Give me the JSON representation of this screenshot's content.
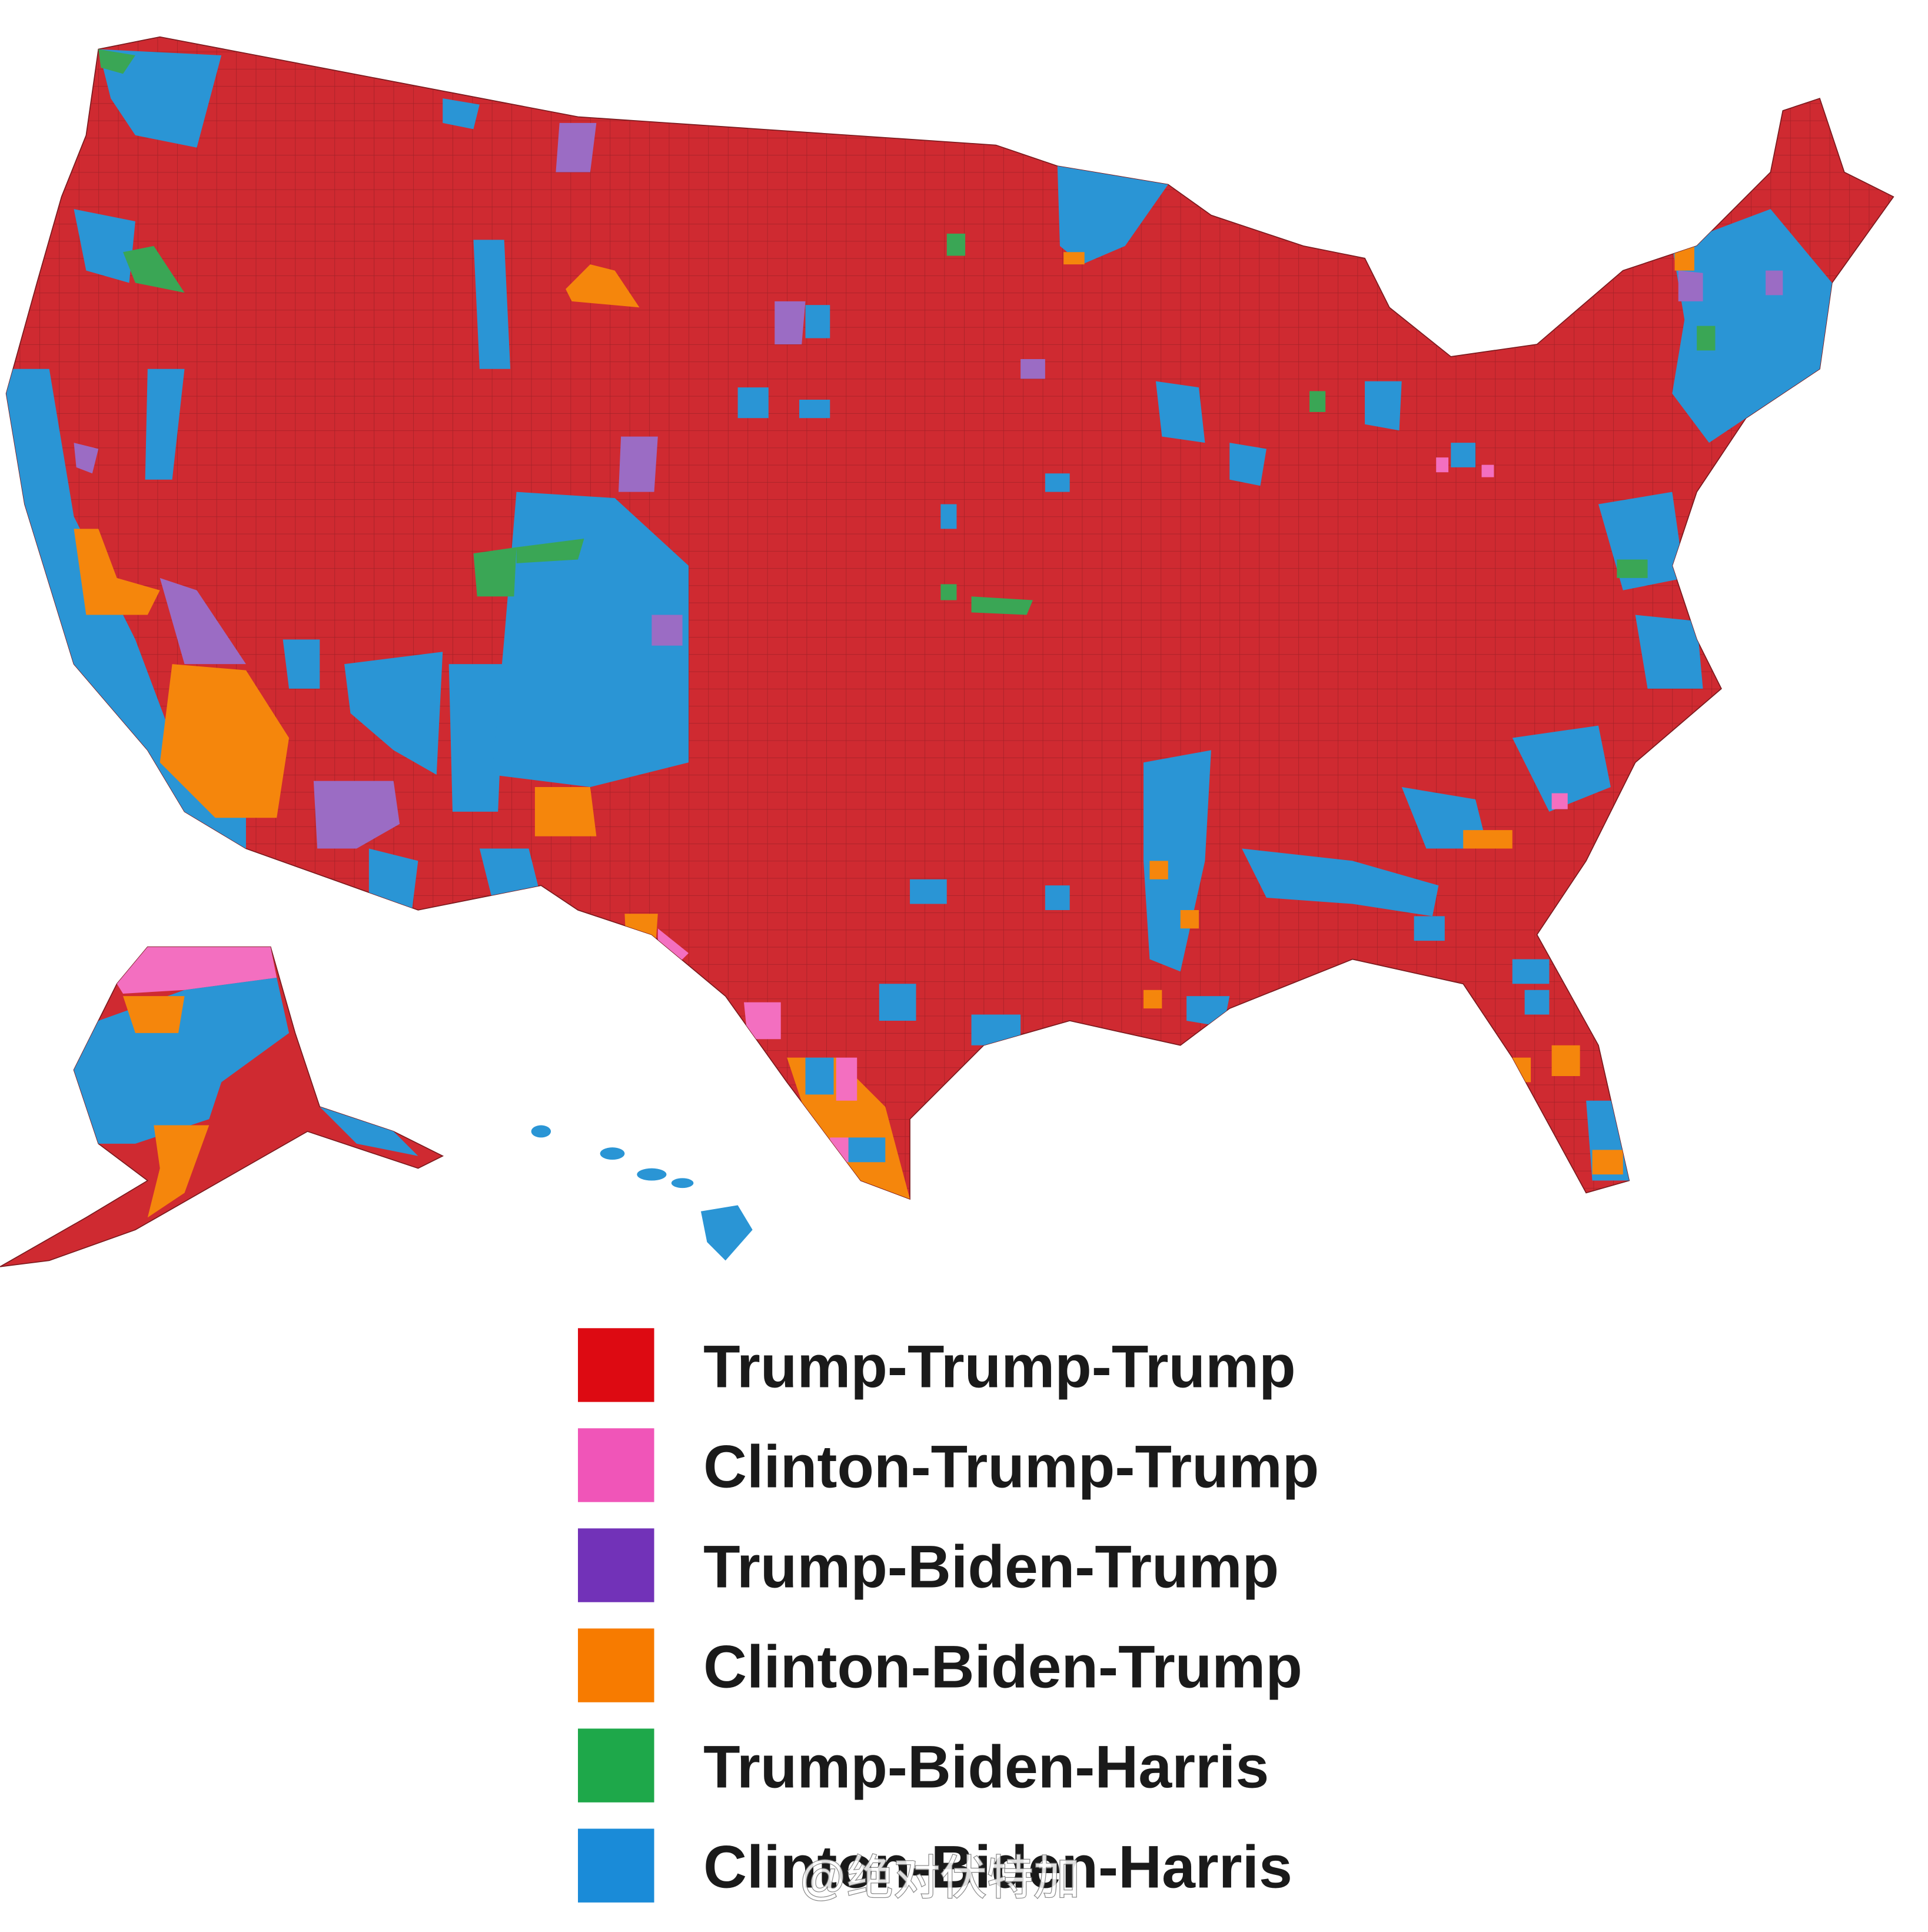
{
  "legend": {
    "items": [
      {
        "label": "Trump-Trump-Trump",
        "color": "#dd0a12"
      },
      {
        "label": "Clinton-Trump-Trump",
        "color": "#f055b8"
      },
      {
        "label": "Trump-Biden-Trump",
        "color": "#7232b8"
      },
      {
        "label": "Clinton-Biden-Trump",
        "color": "#f77b00"
      },
      {
        "label": "Trump-Biden-Harris",
        "color": "#1ea84a"
      },
      {
        "label": "Clinton-Biden-Harris",
        "color": "#1a8bd8"
      }
    ]
  },
  "watermark": "@绝对伏特加"
}
